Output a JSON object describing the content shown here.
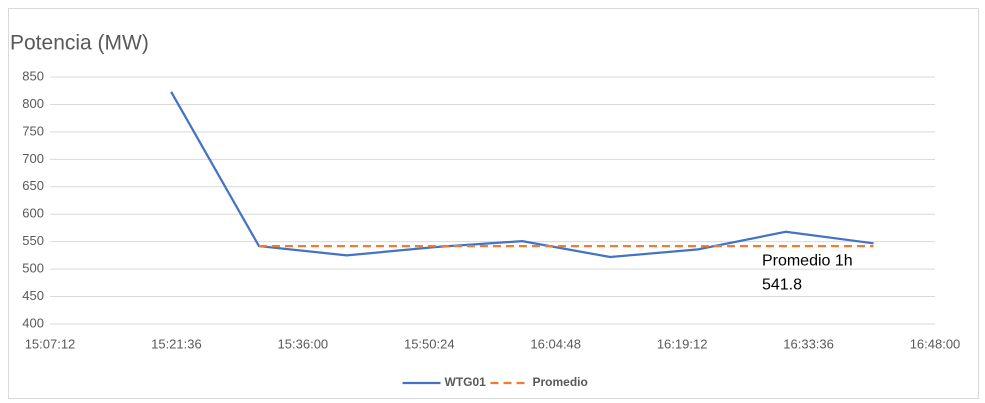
{
  "chart_data": {
    "type": "line",
    "title": "Potencia (MW)",
    "x": [
      "15:21:00",
      "15:31:00",
      "15:41:00",
      "15:51:00",
      "16:01:00",
      "16:11:00",
      "16:21:00",
      "16:31:00",
      "16:41:00"
    ],
    "series": [
      {
        "name": "WTG01",
        "color": "#4472c4",
        "dash": false,
        "values": [
          823,
          542,
          525,
          540,
          551,
          522,
          536,
          568,
          547
        ]
      },
      {
        "name": "Promedio",
        "color": "#ed7d31",
        "dash": true,
        "values": [
          null,
          541.8,
          541.8,
          541.8,
          541.8,
          541.8,
          541.8,
          541.8,
          541.8
        ]
      }
    ],
    "xlim": [
      "15:07:12",
      "16:48:00"
    ],
    "xticks": [
      "15:07:12",
      "15:21:36",
      "15:36:00",
      "15:50:24",
      "16:04:48",
      "16:19:12",
      "16:33:36",
      "16:48:00"
    ],
    "ylim": [
      400,
      850
    ],
    "yticks": [
      400,
      450,
      500,
      550,
      600,
      650,
      700,
      750,
      800,
      850
    ],
    "grid": true,
    "legend": "bottom",
    "annotation": {
      "lines": [
        "Promedio 1h",
        "541.8"
      ],
      "x": "16:30:00",
      "y": 541.8
    }
  }
}
